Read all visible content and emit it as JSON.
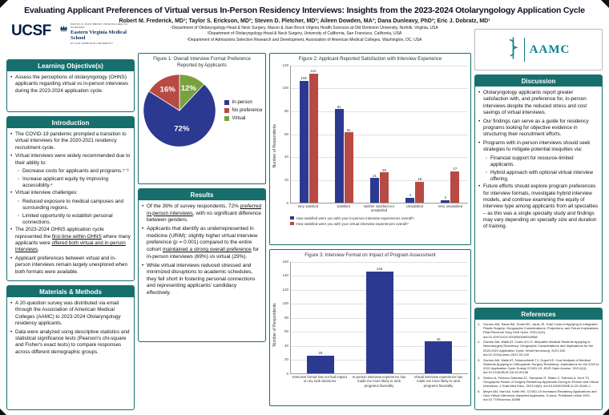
{
  "colors": {
    "teal": "#166f6d",
    "ucsf_navy": "#052049",
    "aamc_teal": "#0f8390",
    "evms_navy": "#0d2f5e"
  },
  "header": {
    "title": "Evaluating Applicant Preferences of Virtual versus In-Person Residency Interviews: Insights from the 2023-2024 Otolaryngology Application Cycle",
    "authors": "Robert M. Frederick, MD¹; Taylor S. Erickson, MD²; Steven D. Pletcher, MD²; Aileen Dowden, MA³; Dana Dunleavy, PhD³; Eric J. Dobratz, MD¹",
    "affiliations": [
      "¹Department of Otolaryngology-Head & Neck Surgery, Macon & Joan Brock Virginia Health Sciences at Old Dominion University, Norfolk, Virginia, USA",
      "²Department of Otolaryngology-Head & Neck Surgery, University of California, San Francisco, California, USA",
      "³Department of Admissions Selection Research and Development, Association of American Medical Colleges, Washington, DC, USA"
    ],
    "logos": {
      "ucsf": "UCSF",
      "evms_line1": "Macon & Joan Brock Virginia Health Sciences",
      "evms_line2": "Eastern Virginia Medical School",
      "evms_line3": "at Old Dominion University",
      "aamc": "AAMC"
    }
  },
  "left": {
    "learning": {
      "title": "Learning Objective(s)",
      "bullets": [
        {
          "text": "Assess the perceptions of otolaryngology (OHNS) applicants regarding virtual vs in-person interviews during the 2023-2024 application cycle."
        }
      ]
    },
    "intro": {
      "title": "Introduction",
      "bullets": [
        {
          "text": "The COVID-19 pandemic prompted a transition to virtual interviews for the 2020-2021 residency recruitment cycle."
        },
        {
          "text": "Virtual interviews were widely recommended due to their ability to:",
          "subs": [
            "Decrease costs for applicants and programs.¹⁻³",
            "Increase applicant equity by improving accessibility.⁴"
          ]
        },
        {
          "text": "Virtual interview challenges:",
          "subs": [
            "Reduced exposure to medical campuses and surrounding regions.",
            "Limited opportunity to establish personal connections."
          ]
        },
        {
          "text": "The 2023-2024 OHNS application cycle represented the [u]first-time within OHNS[/u] where many applicants were [u]offered both virtual and in-person interviews[/u]."
        },
        {
          "text": "Applicant preferences between virtual and in-person interviews remain largely unexplored when both formats were available."
        }
      ]
    },
    "methods": {
      "title": "Materials & Methods",
      "bullets": [
        {
          "text": "A 20-question survey was distributed via email through the Association of American Medical Colleges (AAMC) to 2023-2024 Otolaryngology residency applicants."
        },
        {
          "text": "Data were analyzed using descriptive statistics and statistical significance tests (Pearson's chi-square and Fisher's exact tests) to compare responses across different demographic groups."
        }
      ]
    }
  },
  "middle": {
    "results": {
      "title": "Results",
      "bullets": [
        {
          "text": "Of the 39% of survey respondents, 72% [u]preferred in-person interviews[/u], with no significant difference between genders."
        },
        {
          "text": "Applicants that identify as underrepresented in medicine (URiM): slightly higher virtual interview preference (p = 0.001) compared to the entire cohort [u]maintained a strong overall preference[/u] for in-person interviews (69%) vs virtual (29%)."
        },
        {
          "text": "While virtual interviews reduced stressed and minimized disruptions to academic schedules, they fell short in fostering personal connections and representing applicants' candidacy effectively."
        }
      ]
    }
  },
  "right": {
    "discussion": {
      "title": "Discussion",
      "bullets": [
        {
          "text": "Otolaryngology applicants report greater satisfaction with, and preference for, in-person interviews despite the reduced stress and cost savings of virtual interviews."
        },
        {
          "text": "Our findings can serve as a guide for residency programs looking for objective evidence in structuring their recruitment efforts."
        },
        {
          "text": "Programs with in-person interviews should seek strategies to mitigate potential inequities via:",
          "subs": [
            "Financial support for resource-limited applicants.",
            "Hybrid approach with optional virtual interview offering."
          ]
        },
        {
          "text": "Future efforts should explore program preferences for interview formats, investigate hybrid interview models, and continue examining the equity of interview type among applicants from all specialties – as this was a single specialty study and findings may vary depending on specialty size and duration of training."
        }
      ]
    },
    "references": {
      "title": "References",
      "items": [
        "Gordon AM, Sarac BA, Drolet BC, Janis JE. Total Costs of Applying to Integrated Plastic Surgery: Geographic Considerations, Projections, and Future Implications. Plast Reconstr Surg Glob Open. 2021;9(11). doi:10.1097/GOX.0000000000003958",
        "Gordon AM, Malik AT. Costs of U.S. Allopathic Medical Students Applying to Neurosurgery Residency: Geographic Considerations and Implications for the 2020-2021 Application Cycle. World Neurosurg. 2021;150. doi:10.1016/j.wneu.2021.03.149",
        "Gordon AM, Malik AT, Scharschmidt TJ, Goyal KS. Cost Analysis of Medical Students Applying to Orthopaedic Surgery Residency: Implications for the 2020 to 2021 Application Cycle During COVID-19. JBJS Open Access. 2021;6(1). doi:10.2106/JBJS.OA.20.00158",
        "Storino A, Polanco-Santana JC, Sampson R, Silako C, Fabricio A, Kent TS. Geographic Reach of Surgery Residency Applicants During In-Person and Virtual Interviews. J Grad Med Educ. 2023;15(6). doi:10.4300/JGME-D-23-00181.1",
        "Meyer AM, Hart AA, Keith HN. COVID-19 Increased Residency Applications and How Virtual Interviews Impacted Applicants. Cureus. Published online 2021. doi:10.7759/cureus.16396"
      ]
    }
  },
  "chart_data": [
    {
      "type": "pie",
      "title": "Figure 1: Overall Interview Format Preference Reported by Applicants",
      "labels": [
        "In-person",
        "No preference",
        "Virtual"
      ],
      "values": [
        72,
        16,
        12
      ],
      "value_labels": [
        "72%",
        "16%",
        "12%"
      ],
      "colors": [
        "#2b3990",
        "#b84a44",
        "#79a13e"
      ],
      "legend_position": "right"
    },
    {
      "type": "bar",
      "title": "Figure 2: Applicant Reported Satisfaction with Interview Experience",
      "ylabel": "Number of Respondents",
      "categories": [
        "Very satisfied",
        "Satisfied",
        "Neither satisfied nor unsatisfied",
        "Unsatisfied",
        "Very unsatisfied"
      ],
      "series": [
        {
          "name": "How satisfied were you with your in-person interview experiences overall?",
          "color": "#2b3990",
          "values": [
            106,
            81,
            21,
            4,
            2
          ]
        },
        {
          "name": "How satisfied were you with your virtual interview experiences overall?",
          "color": "#b84a44",
          "values": [
            112,
            61,
            26,
            18,
            27
          ]
        }
      ],
      "ylim": [
        0,
        120
      ],
      "ytick": 20,
      "grid": true,
      "legend_position": "bottom"
    },
    {
      "type": "bar",
      "title": "Figure 3: Interview Format on Impact of Program Assessment",
      "ylabel": "Number of Respondents",
      "categories": [
        "Interview format has not had impact on my rank decisions",
        "In-person interview experience has made me more likely to rank programs favorably",
        "Virtual interview experience has made me more likely to rank programs favorably"
      ],
      "values": [
        25,
        145,
        45
      ],
      "color": "#2b3990",
      "ylim": [
        0,
        160
      ],
      "ytick": 20,
      "grid": true
    }
  ]
}
